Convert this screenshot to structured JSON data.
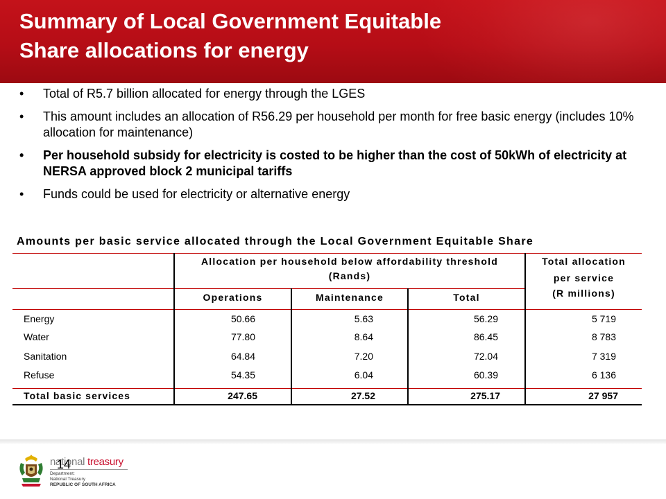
{
  "title": {
    "line1": "Summary of Local Government Equitable",
    "line2": "Share allocations for energy"
  },
  "bullets": [
    {
      "text": "Total of R5.7 billion allocated for energy through the LGES",
      "bold": false
    },
    {
      "text": "This amount includes an allocation of R56.29 per household per month for free basic energy (includes 10% allocation for maintenance)",
      "bold": false
    },
    {
      "text": "Per household subsidy for electricity is costed to be higher than the cost of 50kWh of electricity at NERSA approved block 2 municipal tariffs",
      "bold": true
    },
    {
      "text": "Funds could be used for electricity or alternative energy",
      "bold": false
    }
  ],
  "bullet_glyph": "•",
  "table": {
    "caption": "Amounts per basic service allocated through the Local Government Equitable Share",
    "group_header_line1": "Allocation per household below affordability threshold",
    "group_header_line2": "(Rands)",
    "total_header_line1": "Total allocation",
    "total_header_line2": "per service",
    "total_header_line3": "(R millions)",
    "sub_headers": [
      "Operations",
      "Maintenance",
      "Total"
    ],
    "rows": [
      {
        "label": "Energy",
        "operations": "50.66",
        "maintenance": "5.63",
        "total": "56.29",
        "allocation": "5 719"
      },
      {
        "label": "Water",
        "operations": "77.80",
        "maintenance": "8.64",
        "total": "86.45",
        "allocation": "8 783"
      },
      {
        "label": "Sanitation",
        "operations": "64.84",
        "maintenance": "7.20",
        "total": "72.04",
        "allocation": "7 319"
      },
      {
        "label": "Refuse",
        "operations": "54.35",
        "maintenance": "6.04",
        "total": "60.39",
        "allocation": "6 136"
      }
    ],
    "total_row": {
      "label": "Total basic services",
      "operations": "247.65",
      "maintenance": "27.52",
      "total": "275.17",
      "allocation": "27 957"
    }
  },
  "footer": {
    "page_number": "14",
    "logo_name_part1": "national",
    "logo_name_part2": " treasury",
    "logo_line1": "Department:",
    "logo_line2": "National Treasury",
    "logo_line3": "REPUBLIC OF SOUTH AFRICA"
  },
  "colors": {
    "banner": "#b50d16",
    "table_rule": "#c00000",
    "treasury_red": "#c8102e"
  }
}
